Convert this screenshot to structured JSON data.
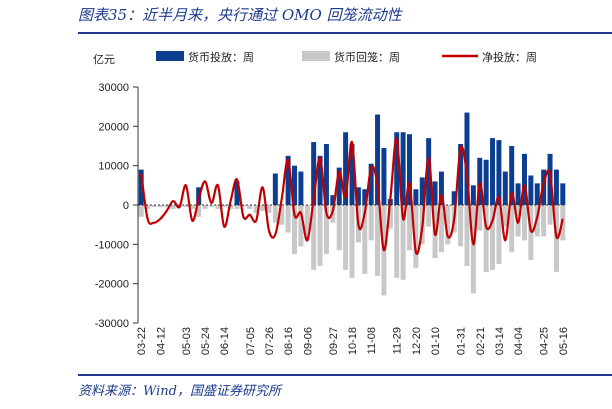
{
  "header": {
    "title": "图表35：近半月来，央行通过 OMO 回笼流动性"
  },
  "footer": {
    "source": "资料来源：Wind，国盛证券研究所"
  },
  "chart_data": {
    "type": "bar",
    "title": "图表35：近半月来，央行通过 OMO 回笼流动性",
    "ylabel": "亿元",
    "xlabel": "",
    "ylim": [
      -30000,
      30000
    ],
    "yticks": [
      30000,
      20000,
      10000,
      0,
      -10000,
      -20000,
      -30000
    ],
    "ytick_labels": [
      "30000",
      "20000",
      "10000",
      "0",
      "-10000",
      "-20000",
      "-30000"
    ],
    "x_tick_labels": [
      "03-22",
      "04-12",
      "05-03",
      "05-24",
      "06-14",
      "07-05",
      "07-26",
      "08-16",
      "09-06",
      "09-27",
      "10-18",
      "11-08",
      "11-29",
      "12-20",
      "01-10",
      "01-31",
      "02-21",
      "03-14",
      "04-04",
      "04-25",
      "05-16"
    ],
    "legend": [
      "货币投放：周",
      "货币回笼：周",
      "净投放：周"
    ],
    "colors": {
      "injection": "#0b3d91",
      "withdrawal": "#c8c8c8",
      "net": "#c00000",
      "axis": "#333333",
      "text": "#222222"
    },
    "series": [
      {
        "name": "货币投放：周",
        "type": "bar",
        "values": [
          9000,
          0,
          0,
          0,
          0,
          0,
          0,
          0,
          0,
          4500,
          0,
          0,
          0,
          0,
          0,
          6000,
          0,
          0,
          0,
          0,
          0,
          8000,
          0,
          12500,
          10000,
          8500,
          0,
          16000,
          12500,
          15500,
          2500,
          9500,
          18500,
          15500,
          4500,
          4000,
          10500,
          23000,
          14500,
          1500,
          18500,
          18500,
          18000,
          4000,
          7000,
          17000,
          6000,
          8500,
          0,
          3500,
          15500,
          23500,
          5000,
          12000,
          11500,
          17000,
          16500,
          8500,
          15000,
          5500,
          13000,
          7500,
          5500,
          9000,
          13000,
          9000,
          5500
        ]
      },
      {
        "name": "货币回笼：周",
        "type": "bar",
        "values": [
          -3000,
          -1000,
          -500,
          -500,
          -500,
          -1000,
          -500,
          -500,
          -1000,
          -3000,
          -1000,
          -500,
          -1000,
          -500,
          -1000,
          -1000,
          -500,
          -1000,
          -2000,
          -1500,
          -2000,
          -4500,
          -5000,
          -7000,
          -12500,
          -10500,
          -9000,
          -16500,
          -15500,
          -12500,
          -4500,
          -11500,
          -16500,
          -18500,
          -9500,
          -17500,
          -9000,
          -18000,
          -23000,
          -6000,
          -18500,
          -19000,
          -11500,
          -16000,
          -10000,
          -5500,
          -13500,
          -12000,
          -10000,
          -7000,
          -10500,
          -15500,
          -22500,
          -6500,
          -17000,
          -16500,
          -15000,
          -5500,
          -12000,
          -8000,
          -9000,
          -14000,
          -8000,
          -8000,
          -5000,
          -17000,
          -9000
        ]
      },
      {
        "name": "净投放：周",
        "type": "line",
        "values": [
          8000,
          -3500,
          -4500,
          -3500,
          -1500,
          1000,
          -500,
          5000,
          -4000,
          1500,
          6000,
          500,
          5000,
          -5500,
          1000,
          6500,
          -3000,
          -2500,
          -4000,
          4500,
          -6500,
          -7500,
          1500,
          11500,
          -2500,
          -2000,
          -9000,
          1500,
          12000,
          -2000,
          -1500,
          8500,
          2000,
          16000,
          -5000,
          -2000,
          9500,
          5000,
          -11500,
          1500,
          17000,
          -3500,
          5500,
          -12000,
          -5500,
          12000,
          -7500,
          2500,
          -8000,
          -3500,
          14500,
          7500,
          -10000,
          5500,
          -5500,
          -4000,
          2000,
          -9000,
          3000,
          -4500,
          5000,
          -6500,
          -3000,
          5500,
          8000,
          -8000,
          -3500
        ]
      }
    ]
  }
}
